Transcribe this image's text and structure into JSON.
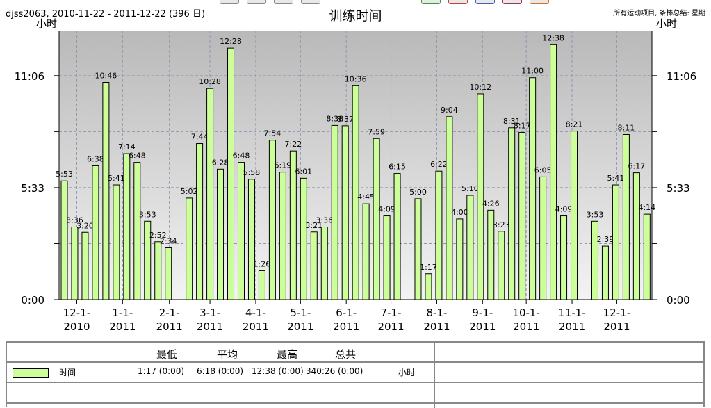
{
  "header": {
    "subtitle": "djss2063, 2010-11-22 - 2011-12-22 (396 日)",
    "title": "训练时间",
    "note": "所有运动项目, 条棒总结: 星期",
    "unit_left": "小时",
    "unit_right": "小时"
  },
  "chart_data": {
    "type": "bar",
    "title": "训练时间",
    "ylabel": "小时",
    "ylim_minutes": [
      0,
      800
    ],
    "y_ticks": [
      {
        "label": "0:00",
        "value": 0
      },
      {
        "label": "5:33",
        "value": 333
      },
      {
        "label": "11:06",
        "value": 666
      }
    ],
    "x_ticks": [
      {
        "label1": "12-1-",
        "label2": "2010",
        "pos": 1.2
      },
      {
        "label1": "1-1-",
        "label2": "2011",
        "pos": 5.6
      },
      {
        "label1": "2-1-",
        "label2": "2011",
        "pos": 10.1
      },
      {
        "label1": "3-1-",
        "label2": "2011",
        "pos": 14.0
      },
      {
        "label1": "4-1-",
        "label2": "2011",
        "pos": 18.4
      },
      {
        "label1": "5-1-",
        "label2": "2011",
        "pos": 22.7
      },
      {
        "label1": "6-1-",
        "label2": "2011",
        "pos": 27.1
      },
      {
        "label1": "7-1-",
        "label2": "2011",
        "pos": 31.4
      },
      {
        "label1": "8-1-",
        "label2": "2011",
        "pos": 35.8
      },
      {
        "label1": "9-1-",
        "label2": "2011",
        "pos": 40.2
      },
      {
        "label1": "10-1-",
        "label2": "2011",
        "pos": 44.4
      },
      {
        "label1": "11-1-",
        "label2": "2011",
        "pos": 48.8
      },
      {
        "label1": "12-1-",
        "label2": "2011",
        "pos": 53.1
      }
    ],
    "bar_color": "#ccff99",
    "series": [
      {
        "name": "时间",
        "values": [
          {
            "label": "5:53",
            "minutes": 353
          },
          {
            "label": "3:36",
            "minutes": 216
          },
          {
            "label": "3:20",
            "minutes": 200
          },
          {
            "label": "6:38",
            "minutes": 398
          },
          {
            "label": "10:46",
            "minutes": 646
          },
          {
            "label": "5:41",
            "minutes": 341
          },
          {
            "label": "7:14",
            "minutes": 434
          },
          {
            "label": "6:48",
            "minutes": 408
          },
          {
            "label": "3:53",
            "minutes": 233
          },
          {
            "label": "2:52",
            "minutes": 172
          },
          {
            "label": "2:34",
            "minutes": 154
          },
          {
            "label": "",
            "minutes": 0
          },
          {
            "label": "5:02",
            "minutes": 302
          },
          {
            "label": "7:44",
            "minutes": 464
          },
          {
            "label": "10:28",
            "minutes": 628
          },
          {
            "label": "6:28",
            "minutes": 388
          },
          {
            "label": "12:28",
            "minutes": 748
          },
          {
            "label": "6:48",
            "minutes": 408
          },
          {
            "label": "5:58",
            "minutes": 358
          },
          {
            "label": "1:26",
            "minutes": 86
          },
          {
            "label": "7:54",
            "minutes": 474
          },
          {
            "label": "6:19",
            "minutes": 379
          },
          {
            "label": "7:22",
            "minutes": 442
          },
          {
            "label": "6:01",
            "minutes": 361
          },
          {
            "label": "3:21",
            "minutes": 201
          },
          {
            "label": "3:36",
            "minutes": 216
          },
          {
            "label": "8:38",
            "minutes": 518
          },
          {
            "label": "8:37",
            "minutes": 517
          },
          {
            "label": "10:36",
            "minutes": 636
          },
          {
            "label": "4:45",
            "minutes": 285
          },
          {
            "label": "7:59",
            "minutes": 479
          },
          {
            "label": "4:09",
            "minutes": 249
          },
          {
            "label": "6:15",
            "minutes": 375
          },
          {
            "label": "",
            "minutes": 0
          },
          {
            "label": "5:00",
            "minutes": 300
          },
          {
            "label": "1:17",
            "minutes": 77
          },
          {
            "label": "6:22",
            "minutes": 382
          },
          {
            "label": "9:04",
            "minutes": 544
          },
          {
            "label": "4:00",
            "minutes": 240
          },
          {
            "label": "5:10",
            "minutes": 310
          },
          {
            "label": "10:12",
            "minutes": 612
          },
          {
            "label": "4:26",
            "minutes": 266
          },
          {
            "label": "3:23",
            "minutes": 203
          },
          {
            "label": "8:31",
            "minutes": 511
          },
          {
            "label": "8:17",
            "minutes": 497
          },
          {
            "label": "11:00",
            "minutes": 660
          },
          {
            "label": "6:05",
            "minutes": 365
          },
          {
            "label": "12:38",
            "minutes": 758
          },
          {
            "label": "4:09",
            "minutes": 249
          },
          {
            "label": "8:21",
            "minutes": 501
          },
          {
            "label": "",
            "minutes": 0
          },
          {
            "label": "3:53",
            "minutes": 233
          },
          {
            "label": "2:39",
            "minutes": 159
          },
          {
            "label": "5:41",
            "minutes": 341
          },
          {
            "label": "8:11",
            "minutes": 491
          },
          {
            "label": "6:17",
            "minutes": 377
          },
          {
            "label": "4:14",
            "minutes": 254
          }
        ]
      }
    ]
  },
  "stats_table": {
    "headers": {
      "min": "最低",
      "avg": "平均",
      "max": "最高",
      "total": "总共"
    },
    "row": {
      "name": "时间",
      "min": "1:17 (0:00)",
      "avg": "6:18 (0:00)",
      "max": "12:38 (0:00)",
      "total": "340:26 (0:00)",
      "unit": "小时"
    }
  }
}
